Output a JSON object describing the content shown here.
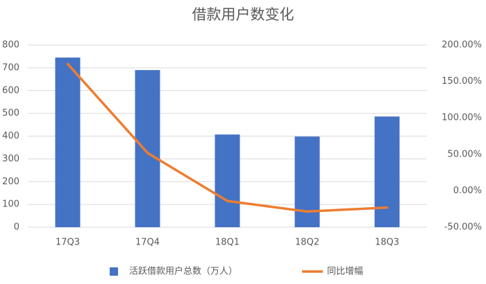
{
  "chart_data": {
    "type": "bar",
    "title": "借款用户数变化",
    "categories": [
      "17Q3",
      "17Q4",
      "18Q1",
      "18Q2",
      "18Q3"
    ],
    "series": [
      {
        "name": "活跃借款用户总数（万人）",
        "color": "#4472c4",
        "type": "bar",
        "values": [
          745,
          690,
          407,
          398,
          486
        ]
      },
      {
        "name": "同比增幅",
        "color": "#ed7d31",
        "type": "line",
        "axis": "y2",
        "values": [
          174,
          52,
          -14,
          -28.5,
          -23
        ]
      }
    ],
    "ylim": [
      0,
      800
    ],
    "yticks": [
      0,
      100,
      200,
      300,
      400,
      500,
      600,
      700,
      800
    ],
    "y2lim": [
      -50,
      200
    ],
    "y2ticks": [
      {
        "value": -50,
        "label": "-50.00%"
      },
      {
        "value": 0,
        "label": "0.00%"
      },
      {
        "value": 50,
        "label": "50.00%"
      },
      {
        "value": 100,
        "label": "100.00%"
      },
      {
        "value": 150,
        "label": "150.00%"
      },
      {
        "value": 200,
        "label": "200.00%"
      }
    ],
    "grid": true
  }
}
